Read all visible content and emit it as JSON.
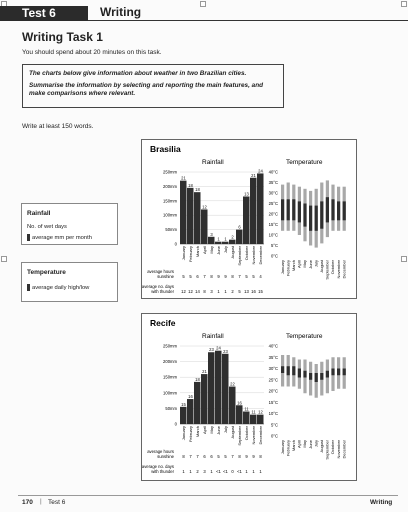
{
  "header": {
    "test": "Test 6",
    "section": "Writing"
  },
  "task_title": "Writing Task 1",
  "intro": "You should spend about 20 minutes on this task.",
  "prompt": [
    "The charts below give information about weather in two Brazilian cities.",
    "Summarise the information by selecting and reporting the main features, and make comparisons where relevant."
  ],
  "word_count": "Write at least 150 words.",
  "key_rainfall": {
    "title": "Rainfall",
    "line1": "No. of wet days",
    "line2": "average mm per month"
  },
  "key_temperature": {
    "title": "Temperature",
    "line1": "average daily high/low"
  },
  "months": [
    "January",
    "February",
    "March",
    "April",
    "May",
    "June",
    "July",
    "August",
    "September",
    "October",
    "November",
    "December"
  ],
  "rain_axis_labels": [
    "250mm",
    "200mm",
    "150mm",
    "100mm",
    "50mm",
    "0"
  ],
  "temp_axis_labels": [
    "40°C",
    "35°C",
    "30°C",
    "25°C",
    "20°C",
    "15°C",
    "10°C",
    "5°C",
    "0°C"
  ],
  "row_labels": {
    "sunshine": [
      "average hours",
      "sunshine"
    ],
    "thunder": [
      "average no. days",
      "with thunder"
    ]
  },
  "chart_data": [
    {
      "city": "Brasilia",
      "type": "bar",
      "rainfall_title": "Rainfall",
      "temperature_title": "Temperature",
      "rain_ylim": [
        0,
        250
      ],
      "rainfall_mm": [
        220,
        195,
        180,
        120,
        25,
        8,
        8,
        15,
        50,
        165,
        230,
        245
      ],
      "wet_days": [
        21,
        18,
        18,
        12,
        3,
        1,
        1,
        2,
        6,
        13,
        21,
        24
      ],
      "temp_ylim": [
        0,
        40
      ],
      "temp_high": [
        27,
        27,
        27,
        26,
        25,
        24,
        24,
        26,
        28,
        27,
        26,
        26
      ],
      "temp_low": [
        17,
        17,
        17,
        16,
        14,
        12,
        12,
        13,
        16,
        17,
        17,
        17
      ],
      "temp_range_high": [
        34,
        35,
        34,
        33,
        32,
        31,
        32,
        35,
        36,
        34,
        33,
        33
      ],
      "temp_range_low": [
        12,
        12,
        12,
        10,
        7,
        5,
        4,
        6,
        9,
        12,
        12,
        12
      ],
      "sunshine": [
        "5",
        "5",
        "6",
        "7",
        "8",
        "9",
        "9",
        "8",
        "7",
        "5",
        "5",
        "4"
      ],
      "thunder": [
        "12",
        "12",
        "14",
        "8",
        "3",
        "1",
        "1",
        "2",
        "5",
        "13",
        "16",
        "15"
      ]
    },
    {
      "city": "Recife",
      "type": "bar",
      "rainfall_title": "Rainfall",
      "temperature_title": "Temperature",
      "rain_ylim": [
        0,
        250
      ],
      "rainfall_mm": [
        55,
        80,
        135,
        160,
        230,
        235,
        225,
        120,
        60,
        40,
        30,
        30
      ],
      "wet_days": [
        15,
        16,
        18,
        21,
        23,
        24,
        23,
        22,
        16,
        11,
        11,
        12
      ],
      "temp_ylim": [
        0,
        40
      ],
      "temp_high": [
        31,
        31,
        31,
        30,
        29,
        28,
        28,
        28,
        29,
        30,
        30,
        30
      ],
      "temp_low": [
        28,
        27,
        27,
        26,
        26,
        25,
        24,
        25,
        26,
        27,
        27,
        27
      ],
      "temp_range_high": [
        36,
        36,
        35,
        34,
        34,
        33,
        32,
        33,
        34,
        35,
        35,
        35
      ],
      "temp_range_low": [
        22,
        22,
        22,
        21,
        19,
        18,
        17,
        18,
        19,
        20,
        21,
        21
      ],
      "sunshine": [
        "8",
        "7",
        "7",
        "6",
        "6",
        "5",
        "5",
        "7",
        "8",
        "9",
        "9",
        "8"
      ],
      "thunder": [
        "1",
        "1",
        "2",
        "3",
        "1",
        "<1",
        "<1",
        "0",
        "<1",
        "1",
        "1",
        "1"
      ]
    }
  ]
}
